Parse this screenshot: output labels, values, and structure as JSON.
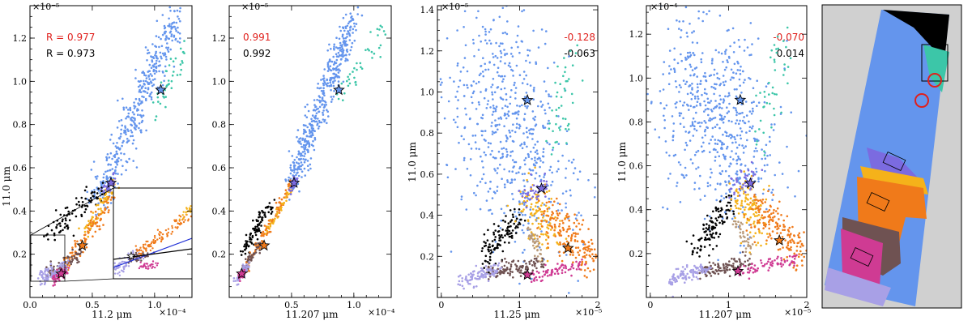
{
  "colors": {
    "blue": "#6495ed",
    "teal": "#3cc6a8",
    "black": "#000000",
    "orange": "#f07a1a",
    "gold": "#f5b21a",
    "brown": "#6f5252",
    "purple": "#7b6be0",
    "lavender": "#a8a0e6",
    "magenta": "#cf3b93",
    "tan": "#b99a7a",
    "grey_bg": "#d0d0d0",
    "red": "#e0201c"
  },
  "chart_data": [
    {
      "type": "scatter",
      "id": "panel1",
      "xlabel": "11.2 μm",
      "ylabel": "11.0 μm",
      "x_exponent": "×10⁻⁴",
      "y_exponent": "×10⁻⁵",
      "xlim": [
        0,
        1.3
      ],
      "ylim": [
        0,
        1.35
      ],
      "xticks": [
        "0.0",
        "0.5",
        "1.0"
      ],
      "xtick_values": [
        0,
        0.5,
        1.0
      ],
      "yticks": [
        "0.2",
        "0.4",
        "0.6",
        "0.8",
        "1.0",
        "1.2"
      ],
      "ytick_values": [
        0.2,
        0.4,
        0.6,
        0.8,
        1.0,
        1.2
      ],
      "annotations": [
        {
          "text": "R = 0.977",
          "color": "red"
        },
        {
          "text": "R = 0.973",
          "color": "black"
        }
      ],
      "has_inset": true,
      "stars": [
        [
          1.05,
          0.96
        ],
        [
          0.65,
          0.53
        ],
        [
          0.42,
          0.24
        ],
        [
          0.25,
          0.11
        ]
      ],
      "clusters": [
        {
          "color": "blue",
          "n": 420,
          "x0": 0.55,
          "y0": 0.45,
          "x1": 1.18,
          "y1": 1.3,
          "spread": 0.045
        },
        {
          "color": "teal",
          "n": 40,
          "x0": 1.0,
          "y0": 0.85,
          "x1": 1.25,
          "y1": 1.18,
          "spread": 0.03
        },
        {
          "color": "black",
          "n": 90,
          "x0": 0.15,
          "y0": 0.3,
          "x1": 0.62,
          "y1": 0.52,
          "spread": 0.03
        },
        {
          "color": "gold",
          "n": 70,
          "x0": 0.45,
          "y0": 0.3,
          "x1": 0.68,
          "y1": 0.52,
          "spread": 0.02
        },
        {
          "color": "orange",
          "n": 110,
          "x0": 0.25,
          "y0": 0.12,
          "x1": 0.65,
          "y1": 0.45,
          "spread": 0.022
        },
        {
          "color": "brown",
          "n": 70,
          "x0": 0.15,
          "y0": 0.11,
          "x1": 0.4,
          "y1": 0.2,
          "spread": 0.02
        },
        {
          "color": "lavender",
          "n": 90,
          "x0": 0.08,
          "y0": 0.08,
          "x1": 0.3,
          "y1": 0.15,
          "spread": 0.02
        },
        {
          "color": "magenta",
          "n": 50,
          "x0": 0.18,
          "y0": 0.08,
          "x1": 0.3,
          "y1": 0.13,
          "spread": 0.012
        },
        {
          "color": "purple",
          "n": 30,
          "x0": 0.58,
          "y0": 0.48,
          "x1": 0.68,
          "y1": 0.56,
          "spread": 0.012
        }
      ]
    },
    {
      "type": "scatter",
      "id": "panel2",
      "xlabel": "11.207 μm",
      "ylabel": "",
      "x_exponent": "×10⁻⁴",
      "y_exponent": "×10⁻⁵",
      "xlim": [
        0,
        1.3
      ],
      "ylim": [
        0,
        1.35
      ],
      "xticks": [
        "0.5",
        "1.0"
      ],
      "xtick_values": [
        0.5,
        1.0
      ],
      "yticks": [
        "0.2",
        "0.4",
        "0.6",
        "0.8",
        "1.0",
        "1.2"
      ],
      "ytick_values": [
        0.2,
        0.4,
        0.6,
        0.8,
        1.0,
        1.2
      ],
      "annotations": [
        {
          "text": "0.991",
          "color": "red"
        },
        {
          "text": "0.992",
          "color": "black"
        }
      ],
      "has_inset": false,
      "stars": [
        [
          0.88,
          0.96
        ],
        [
          0.52,
          0.53
        ],
        [
          0.28,
          0.24
        ],
        [
          0.1,
          0.11
        ]
      ],
      "clusters": [
        {
          "color": "blue",
          "n": 450,
          "x0": 0.48,
          "y0": 0.5,
          "x1": 1.0,
          "y1": 1.3,
          "spread": 0.035
        },
        {
          "color": "teal",
          "n": 40,
          "x0": 0.85,
          "y0": 0.9,
          "x1": 1.25,
          "y1": 1.25,
          "spread": 0.03
        },
        {
          "color": "black",
          "n": 90,
          "x0": 0.12,
          "y0": 0.22,
          "x1": 0.32,
          "y1": 0.42,
          "spread": 0.018
        },
        {
          "color": "orange",
          "n": 120,
          "x0": 0.1,
          "y0": 0.1,
          "x1": 0.5,
          "y1": 0.52,
          "spread": 0.012
        },
        {
          "color": "gold",
          "n": 40,
          "x0": 0.3,
          "y0": 0.3,
          "x1": 0.5,
          "y1": 0.5,
          "spread": 0.01
        },
        {
          "color": "brown",
          "n": 50,
          "x0": 0.1,
          "y0": 0.12,
          "x1": 0.25,
          "y1": 0.25,
          "spread": 0.012
        },
        {
          "color": "lavender",
          "n": 60,
          "x0": 0.05,
          "y0": 0.07,
          "x1": 0.15,
          "y1": 0.15,
          "spread": 0.012
        },
        {
          "color": "magenta",
          "n": 30,
          "x0": 0.08,
          "y0": 0.09,
          "x1": 0.12,
          "y1": 0.12,
          "spread": 0.008
        },
        {
          "color": "purple",
          "n": 25,
          "x0": 0.47,
          "y0": 0.48,
          "x1": 0.55,
          "y1": 0.56,
          "spread": 0.01
        }
      ]
    },
    {
      "type": "scatter",
      "id": "panel3",
      "xlabel": "11.25 μm",
      "ylabel": "11.0 μm",
      "x_exponent": "×10⁻⁵",
      "y_exponent": "×10⁻⁵",
      "xlim": [
        -0.05,
        2.0
      ],
      "ylim": [
        0,
        1.42
      ],
      "xticks": [
        "0",
        "1",
        "2"
      ],
      "xtick_values": [
        0,
        1,
        2
      ],
      "yticks": [
        "0.2",
        "0.4",
        "0.6",
        "0.8",
        "1.0",
        "1.2",
        "1.4"
      ],
      "ytick_values": [
        0.2,
        0.4,
        0.6,
        0.8,
        1.0,
        1.2,
        1.4
      ],
      "annotations": [
        {
          "text": "-0.128",
          "color": "red"
        },
        {
          "text": "-0.063",
          "color": "black"
        }
      ],
      "has_inset": false,
      "stars": [
        [
          1.1,
          0.96
        ],
        [
          1.28,
          0.53
        ],
        [
          1.62,
          0.24
        ],
        [
          1.1,
          0.11
        ]
      ],
      "clusters": [
        {
          "color": "blue",
          "n": 600,
          "x0": 0.5,
          "y0": 1.15,
          "x1": 1.25,
          "y1": 0.5,
          "spread": 0.22
        },
        {
          "color": "teal",
          "n": 45,
          "x0": 1.45,
          "y0": 0.7,
          "x1": 1.65,
          "y1": 1.22,
          "spread": 0.05
        },
        {
          "color": "black",
          "n": 110,
          "x0": 0.55,
          "y0": 0.2,
          "x1": 1.0,
          "y1": 0.4,
          "spread": 0.035
        },
        {
          "color": "gold",
          "n": 110,
          "x0": 1.1,
          "y0": 0.5,
          "x1": 1.4,
          "y1": 0.3,
          "spread": 0.06
        },
        {
          "color": "orange",
          "n": 170,
          "x0": 1.3,
          "y0": 0.42,
          "x1": 1.95,
          "y1": 0.18,
          "spread": 0.05
        },
        {
          "color": "tan",
          "n": 40,
          "x0": 1.1,
          "y0": 0.34,
          "x1": 1.3,
          "y1": 0.18,
          "spread": 0.02
        },
        {
          "color": "brown",
          "n": 110,
          "x0": 0.6,
          "y0": 0.12,
          "x1": 1.3,
          "y1": 0.16,
          "spread": 0.018
        },
        {
          "color": "lavender",
          "n": 100,
          "x0": 0.25,
          "y0": 0.08,
          "x1": 0.75,
          "y1": 0.14,
          "spread": 0.018
        },
        {
          "color": "magenta",
          "n": 70,
          "x0": 1.15,
          "y0": 0.1,
          "x1": 1.85,
          "y1": 0.17,
          "spread": 0.014
        },
        {
          "color": "purple",
          "n": 40,
          "x0": 1.05,
          "y0": 0.5,
          "x1": 1.35,
          "y1": 0.55,
          "spread": 0.03
        }
      ]
    },
    {
      "type": "scatter",
      "id": "panel4",
      "xlabel": "11.207 μm",
      "ylabel": "11.0 μm",
      "x_exponent": "×10⁻⁵",
      "y_exponent": "×10⁻⁴",
      "xlim": [
        -0.05,
        2.0
      ],
      "ylim": [
        0,
        1.33
      ],
      "xticks": [
        "0",
        "1",
        "2"
      ],
      "xtick_values": [
        0,
        1,
        2
      ],
      "yticks": [
        "0.2",
        "0.4",
        "0.6",
        "0.8",
        "1.0",
        "1.2"
      ],
      "ytick_values": [
        0.2,
        0.4,
        0.6,
        0.8,
        1.0,
        1.2
      ],
      "annotations": [
        {
          "text": "-0.070",
          "color": "red"
        },
        {
          "text": "0.014",
          "color": "black"
        }
      ],
      "has_inset": false,
      "stars": [
        [
          1.15,
          0.9
        ],
        [
          1.28,
          0.52
        ],
        [
          1.65,
          0.26
        ],
        [
          1.12,
          0.12
        ]
      ],
      "clusters": [
        {
          "color": "blue",
          "n": 600,
          "x0": 0.45,
          "y0": 1.05,
          "x1": 1.2,
          "y1": 0.55,
          "spread": 0.2
        },
        {
          "color": "teal",
          "n": 45,
          "x0": 1.4,
          "y0": 0.7,
          "x1": 1.7,
          "y1": 1.2,
          "spread": 0.05
        },
        {
          "color": "black",
          "n": 110,
          "x0": 0.55,
          "y0": 0.2,
          "x1": 1.0,
          "y1": 0.42,
          "spread": 0.035
        },
        {
          "color": "gold",
          "n": 110,
          "x0": 1.1,
          "y0": 0.5,
          "x1": 1.4,
          "y1": 0.32,
          "spread": 0.06
        },
        {
          "color": "orange",
          "n": 170,
          "x0": 1.3,
          "y0": 0.42,
          "x1": 1.95,
          "y1": 0.2,
          "spread": 0.05
        },
        {
          "color": "tan",
          "n": 40,
          "x0": 1.1,
          "y0": 0.35,
          "x1": 1.3,
          "y1": 0.2,
          "spread": 0.02
        },
        {
          "color": "brown",
          "n": 110,
          "x0": 0.65,
          "y0": 0.12,
          "x1": 1.3,
          "y1": 0.17,
          "spread": 0.018
        },
        {
          "color": "lavender",
          "n": 100,
          "x0": 0.25,
          "y0": 0.08,
          "x1": 0.75,
          "y1": 0.14,
          "spread": 0.018
        },
        {
          "color": "magenta",
          "n": 70,
          "x0": 1.15,
          "y0": 0.11,
          "x1": 1.85,
          "y1": 0.18,
          "spread": 0.014
        },
        {
          "color": "purple",
          "n": 40,
          "x0": 1.05,
          "y0": 0.5,
          "x1": 1.35,
          "y1": 0.56,
          "spread": 0.03
        }
      ]
    }
  ],
  "map_panel": {
    "description_colors": [
      "black",
      "teal",
      "blue",
      "purple",
      "gold",
      "orange",
      "brown",
      "magenta",
      "lavender"
    ]
  }
}
